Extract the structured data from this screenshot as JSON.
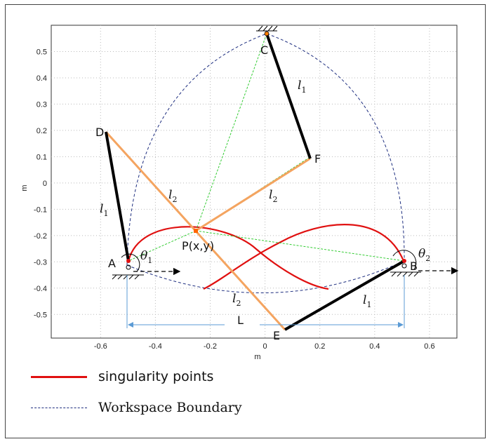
{
  "axes": {
    "x_label": "m",
    "y_label": "m",
    "xlim": [
      -0.78,
      0.7
    ],
    "ylim": [
      -0.59,
      0.6
    ],
    "x_ticks": [
      "-0.6",
      "-0.4",
      "-0.2",
      "0",
      "0.2",
      "0.4",
      "0.6"
    ],
    "y_ticks": [
      "0.5",
      "0.4",
      "0.3",
      "0.2",
      "0.1",
      "0",
      "-0.1",
      "-0.2",
      "-0.3",
      "-0.4",
      "-0.5"
    ],
    "grid": true
  },
  "points": {
    "A": "A",
    "B": "B",
    "C": "C",
    "D": "D",
    "E": "E",
    "F": "F",
    "P": "P(x,y)"
  },
  "link_labels": {
    "l_letter": "l",
    "sub_1": "1",
    "sub_2": "2",
    "theta_letter": "θ",
    "L": "L"
  },
  "legend": {
    "singularity": "singularity points",
    "workspace": "Workspace Boundary"
  },
  "colors": {
    "singularity": "#e01010",
    "workspace": "#1f2f80",
    "arm_black": "#000000",
    "arm_orange": "#f4a460",
    "construction": "#33cc33",
    "dimension": "#5b9bd5"
  }
}
